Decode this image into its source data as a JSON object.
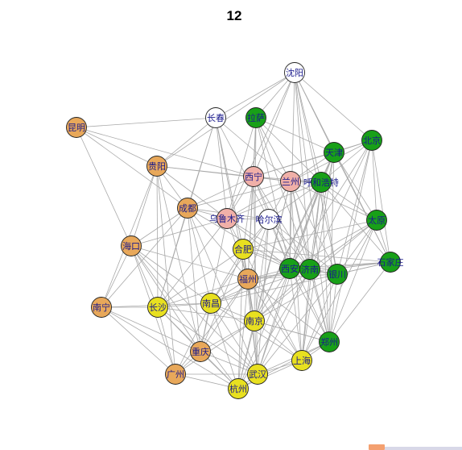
{
  "title": "12",
  "colors": {
    "orange": "#e8a85a",
    "green": "#18a018",
    "yellow": "#e8e020",
    "pink": "#f0b0a8",
    "white": "#ffffff",
    "edge": "#a9a9a9",
    "label": "#1a1a8c"
  },
  "nodes": [
    {
      "id": "shenyang",
      "label": "沈阳",
      "group": "white"
    },
    {
      "id": "changchun",
      "label": "长春",
      "group": "white"
    },
    {
      "id": "lhasa",
      "label": "拉萨",
      "group": "green"
    },
    {
      "id": "kunming",
      "label": "昆明",
      "group": "orange"
    },
    {
      "id": "beijing",
      "label": "北京",
      "group": "green"
    },
    {
      "id": "tianjin",
      "label": "天津",
      "group": "green"
    },
    {
      "id": "guiyang",
      "label": "贵阳",
      "group": "orange"
    },
    {
      "id": "xining",
      "label": "西宁",
      "group": "pink"
    },
    {
      "id": "lanzhou",
      "label": "兰州",
      "group": "pink"
    },
    {
      "id": "hohhot",
      "label": "呼和浩特",
      "group": "green"
    },
    {
      "id": "chengdu",
      "label": "成都",
      "group": "orange"
    },
    {
      "id": "urumqi",
      "label": "乌鲁木齐",
      "group": "pink"
    },
    {
      "id": "harbin",
      "label": "哈尔滨",
      "group": "white"
    },
    {
      "id": "taiyuan",
      "label": "太原",
      "group": "green"
    },
    {
      "id": "haikou",
      "label": "海口",
      "group": "orange"
    },
    {
      "id": "hefei",
      "label": "合肥",
      "group": "yellow"
    },
    {
      "id": "shijiazhuang",
      "label": "石家庄",
      "group": "green"
    },
    {
      "id": "xian",
      "label": "西安",
      "group": "green"
    },
    {
      "id": "jinan",
      "label": "济南",
      "group": "green"
    },
    {
      "id": "yinchuan",
      "label": "银川",
      "group": "green"
    },
    {
      "id": "fuzhou",
      "label": "福州",
      "group": "orange"
    },
    {
      "id": "nanning",
      "label": "南宁",
      "group": "orange"
    },
    {
      "id": "changsha",
      "label": "长沙",
      "group": "yellow"
    },
    {
      "id": "nanchang",
      "label": "南昌",
      "group": "yellow"
    },
    {
      "id": "nanjing",
      "label": "南京",
      "group": "yellow"
    },
    {
      "id": "zhengzhou",
      "label": "郑州",
      "group": "green"
    },
    {
      "id": "chongqing",
      "label": "重庆",
      "group": "orange"
    },
    {
      "id": "shanghai",
      "label": "上海",
      "group": "yellow"
    },
    {
      "id": "guangzhou",
      "label": "广州",
      "group": "orange"
    },
    {
      "id": "wuhan",
      "label": "武汉",
      "group": "yellow"
    },
    {
      "id": "hangzhou",
      "label": "杭州",
      "group": "yellow"
    }
  ],
  "edges": [
    [
      "shenyang",
      "changchun"
    ],
    [
      "shenyang",
      "lhasa"
    ],
    [
      "shenyang",
      "tianjin"
    ],
    [
      "shenyang",
      "beijing"
    ],
    [
      "shenyang",
      "hohhot"
    ],
    [
      "shenyang",
      "xining"
    ],
    [
      "shenyang",
      "urumqi"
    ],
    [
      "shenyang",
      "jinan"
    ],
    [
      "shenyang",
      "yinchuan"
    ],
    [
      "shenyang",
      "shijiazhuang"
    ],
    [
      "shenyang",
      "zhengzhou"
    ],
    [
      "shenyang",
      "xian"
    ],
    [
      "shenyang",
      "guiyang"
    ],
    [
      "kunming",
      "guiyang"
    ],
    [
      "kunming",
      "changchun"
    ],
    [
      "kunming",
      "haikou"
    ],
    [
      "kunming",
      "chengdu"
    ],
    [
      "kunming",
      "xining"
    ],
    [
      "changchun",
      "chengdu"
    ],
    [
      "changchun",
      "guiyang"
    ],
    [
      "changchun",
      "harbin"
    ],
    [
      "changchun",
      "urumqi"
    ],
    [
      "changchun",
      "hefei"
    ],
    [
      "changchun",
      "nanjing"
    ],
    [
      "changchun",
      "lanzhou"
    ],
    [
      "changchun",
      "changsha"
    ],
    [
      "lhasa",
      "xining"
    ],
    [
      "lhasa",
      "lanzhou"
    ],
    [
      "lhasa",
      "urumqi"
    ],
    [
      "lhasa",
      "hohhot"
    ],
    [
      "lhasa",
      "fuzhou"
    ],
    [
      "lhasa",
      "nanjing"
    ],
    [
      "lhasa",
      "xian"
    ],
    [
      "lhasa",
      "jinan"
    ],
    [
      "lhasa",
      "tianjin"
    ],
    [
      "guiyang",
      "chengdu"
    ],
    [
      "guiyang",
      "haikou"
    ],
    [
      "guiyang",
      "xining"
    ],
    [
      "guiyang",
      "lanzhou"
    ],
    [
      "guiyang",
      "chongqing"
    ],
    [
      "guiyang",
      "nanning"
    ],
    [
      "guiyang",
      "changsha"
    ],
    [
      "guiyang",
      "guangzhou"
    ],
    [
      "guiyang",
      "urumqi"
    ],
    [
      "beijing",
      "tianjin"
    ],
    [
      "beijing",
      "taiyuan"
    ],
    [
      "beijing",
      "shijiazhuang"
    ],
    [
      "beijing",
      "hohhot"
    ],
    [
      "beijing",
      "lanzhou"
    ],
    [
      "beijing",
      "jinan"
    ],
    [
      "beijing",
      "yinchuan"
    ],
    [
      "beijing",
      "zhengzhou"
    ],
    [
      "beijing",
      "xian"
    ],
    [
      "beijing",
      "xining"
    ],
    [
      "tianjin",
      "hohhot"
    ],
    [
      "tianjin",
      "lanzhou"
    ],
    [
      "tianjin",
      "taiyuan"
    ],
    [
      "tianjin",
      "jinan"
    ],
    [
      "tianjin",
      "shijiazhuang"
    ],
    [
      "tianjin",
      "zhengzhou"
    ],
    [
      "tianjin",
      "xian"
    ],
    [
      "tianjin",
      "xining"
    ],
    [
      "tianjin",
      "nanjing"
    ],
    [
      "tianjin",
      "shanghai"
    ],
    [
      "xining",
      "lanzhou"
    ],
    [
      "xining",
      "chengdu"
    ],
    [
      "xining",
      "urumqi"
    ],
    [
      "xining",
      "hohhot"
    ],
    [
      "xining",
      "xian"
    ],
    [
      "xining",
      "jinan"
    ],
    [
      "xining",
      "hefei"
    ],
    [
      "xining",
      "fuzhou"
    ],
    [
      "xining",
      "wuhan"
    ],
    [
      "xining",
      "zhengzhou"
    ],
    [
      "lanzhou",
      "hohhot"
    ],
    [
      "lanzhou",
      "urumqi"
    ],
    [
      "lanzhou",
      "harbin"
    ],
    [
      "lanzhou",
      "chengdu"
    ],
    [
      "lanzhou",
      "xian"
    ],
    [
      "lanzhou",
      "yinchuan"
    ],
    [
      "lanzhou",
      "taiyuan"
    ],
    [
      "lanzhou",
      "jinan"
    ],
    [
      "lanzhou",
      "nanjing"
    ],
    [
      "lanzhou",
      "shanghai"
    ],
    [
      "lanzhou",
      "hangzhou"
    ],
    [
      "lanzhou",
      "zhengzhou"
    ],
    [
      "hohhot",
      "taiyuan"
    ],
    [
      "hohhot",
      "yinchuan"
    ],
    [
      "hohhot",
      "xian"
    ],
    [
      "hohhot",
      "jinan"
    ],
    [
      "hohhot",
      "zhengzhou"
    ],
    [
      "hohhot",
      "shijiazhuang"
    ],
    [
      "hohhot",
      "harbin"
    ],
    [
      "hohhot",
      "urumqi"
    ],
    [
      "hohhot",
      "wuhan"
    ],
    [
      "hohhot",
      "nanjing"
    ],
    [
      "hohhot",
      "shanghai"
    ],
    [
      "chengdu",
      "urumqi"
    ],
    [
      "chengdu",
      "chongqing"
    ],
    [
      "chengdu",
      "haikou"
    ],
    [
      "chengdu",
      "changsha"
    ],
    [
      "chengdu",
      "nanning"
    ],
    [
      "chengdu",
      "harbin"
    ],
    [
      "chengdu",
      "fuzhou"
    ],
    [
      "chengdu",
      "nanchang"
    ],
    [
      "chengdu",
      "wuhan"
    ],
    [
      "chengdu",
      "xian"
    ],
    [
      "urumqi",
      "harbin"
    ],
    [
      "urumqi",
      "haikou"
    ],
    [
      "urumqi",
      "hefei"
    ],
    [
      "urumqi",
      "fuzhou"
    ],
    [
      "urumqi",
      "xian"
    ],
    [
      "urumqi",
      "jinan"
    ],
    [
      "urumqi",
      "changsha"
    ],
    [
      "urumqi",
      "chongqing"
    ],
    [
      "harbin",
      "hefei"
    ],
    [
      "harbin",
      "xian"
    ],
    [
      "harbin",
      "jinan"
    ],
    [
      "harbin",
      "yinchuan"
    ],
    [
      "harbin",
      "fuzhou"
    ],
    [
      "harbin",
      "nanchang"
    ],
    [
      "harbin",
      "nanjing"
    ],
    [
      "harbin",
      "wuhan"
    ],
    [
      "taiyuan",
      "shijiazhuang"
    ],
    [
      "taiyuan",
      "yinchuan"
    ],
    [
      "taiyuan",
      "jinan"
    ],
    [
      "taiyuan",
      "xian"
    ],
    [
      "taiyuan",
      "zhengzhou"
    ],
    [
      "taiyuan",
      "nanjing"
    ],
    [
      "taiyuan",
      "shanghai"
    ],
    [
      "taiyuan",
      "hefei"
    ],
    [
      "haikou",
      "nanning"
    ],
    [
      "haikou",
      "changsha"
    ],
    [
      "haikou",
      "guangzhou"
    ],
    [
      "haikou",
      "chongqing"
    ],
    [
      "haikou",
      "fuzhou"
    ],
    [
      "haikou",
      "hangzhou"
    ],
    [
      "haikou",
      "nanchang"
    ],
    [
      "haikou",
      "wuhan"
    ],
    [
      "hefei",
      "fuzhou"
    ],
    [
      "hefei",
      "nanjing"
    ],
    [
      "hefei",
      "hangzhou"
    ],
    [
      "hefei",
      "wuhan"
    ],
    [
      "hefei",
      "xian"
    ],
    [
      "hefei",
      "jinan"
    ],
    [
      "hefei",
      "changsha"
    ],
    [
      "hefei",
      "nanchang"
    ],
    [
      "hefei",
      "shanghai"
    ],
    [
      "hefei",
      "chongqing"
    ],
    [
      "shijiazhuang",
      "yinchuan"
    ],
    [
      "shijiazhuang",
      "jinan"
    ],
    [
      "shijiazhuang",
      "xian"
    ],
    [
      "shijiazhuang",
      "zhengzhou"
    ],
    [
      "shijiazhuang",
      "fuzhou"
    ],
    [
      "shijiazhuang",
      "hefei"
    ],
    [
      "shijiazhuang",
      "nanchang"
    ],
    [
      "xian",
      "jinan"
    ],
    [
      "xian",
      "yinchuan"
    ],
    [
      "xian",
      "zhengzhou"
    ],
    [
      "xian",
      "fuzhou"
    ],
    [
      "xian",
      "nanjing"
    ],
    [
      "xian",
      "wuhan"
    ],
    [
      "xian",
      "shanghai"
    ],
    [
      "xian",
      "hangzhou"
    ],
    [
      "xian",
      "nanchang"
    ],
    [
      "jinan",
      "yinchuan"
    ],
    [
      "jinan",
      "zhengzhou"
    ],
    [
      "jinan",
      "fuzhou"
    ],
    [
      "jinan",
      "nanjing"
    ],
    [
      "jinan",
      "shanghai"
    ],
    [
      "jinan",
      "wuhan"
    ],
    [
      "jinan",
      "hangzhou"
    ],
    [
      "jinan",
      "nanchang"
    ],
    [
      "yinchuan",
      "zhengzhou"
    ],
    [
      "yinchuan",
      "shanghai"
    ],
    [
      "yinchuan",
      "nanjing"
    ],
    [
      "yinchuan",
      "wuhan"
    ],
    [
      "yinchuan",
      "fuzhou"
    ],
    [
      "fuzhou",
      "nanchang"
    ],
    [
      "fuzhou",
      "nanjing"
    ],
    [
      "fuzhou",
      "wuhan"
    ],
    [
      "fuzhou",
      "hangzhou"
    ],
    [
      "fuzhou",
      "changsha"
    ],
    [
      "fuzhou",
      "chongqing"
    ],
    [
      "fuzhou",
      "guangzhou"
    ],
    [
      "fuzhou",
      "shanghai"
    ],
    [
      "fuzhou",
      "zhengzhou"
    ],
    [
      "nanning",
      "changsha"
    ],
    [
      "nanning",
      "guangzhou"
    ],
    [
      "nanning",
      "chongqing"
    ],
    [
      "nanning",
      "hangzhou"
    ],
    [
      "nanning",
      "nanchang"
    ],
    [
      "changsha",
      "nanchang"
    ],
    [
      "changsha",
      "chongqing"
    ],
    [
      "changsha",
      "guangzhou"
    ],
    [
      "changsha",
      "wuhan"
    ],
    [
      "changsha",
      "hangzhou"
    ],
    [
      "changsha",
      "nanjing"
    ],
    [
      "nanchang",
      "nanjing"
    ],
    [
      "nanchang",
      "chongqing"
    ],
    [
      "nanchang",
      "wuhan"
    ],
    [
      "nanchang",
      "hangzhou"
    ],
    [
      "nanchang",
      "guangzhou"
    ],
    [
      "nanchang",
      "shanghai"
    ],
    [
      "nanjing",
      "wuhan"
    ],
    [
      "nanjing",
      "hangzhou"
    ],
    [
      "nanjing",
      "shanghai"
    ],
    [
      "nanjing",
      "zhengzhou"
    ],
    [
      "nanjing",
      "chongqing"
    ],
    [
      "nanjing",
      "guangzhou"
    ],
    [
      "zhengzhou",
      "wuhan"
    ],
    [
      "zhengzhou",
      "shanghai"
    ],
    [
      "zhengzhou",
      "hangzhou"
    ],
    [
      "zhengzhou",
      "nanjing"
    ],
    [
      "chongqing",
      "guangzhou"
    ],
    [
      "chongqing",
      "wuhan"
    ],
    [
      "chongqing",
      "hangzhou"
    ],
    [
      "shanghai",
      "hangzhou"
    ],
    [
      "shanghai",
      "wuhan"
    ],
    [
      "guangzhou",
      "hangzhou"
    ],
    [
      "guangzhou",
      "wuhan"
    ],
    [
      "wuhan",
      "hangzhou"
    ]
  ]
}
